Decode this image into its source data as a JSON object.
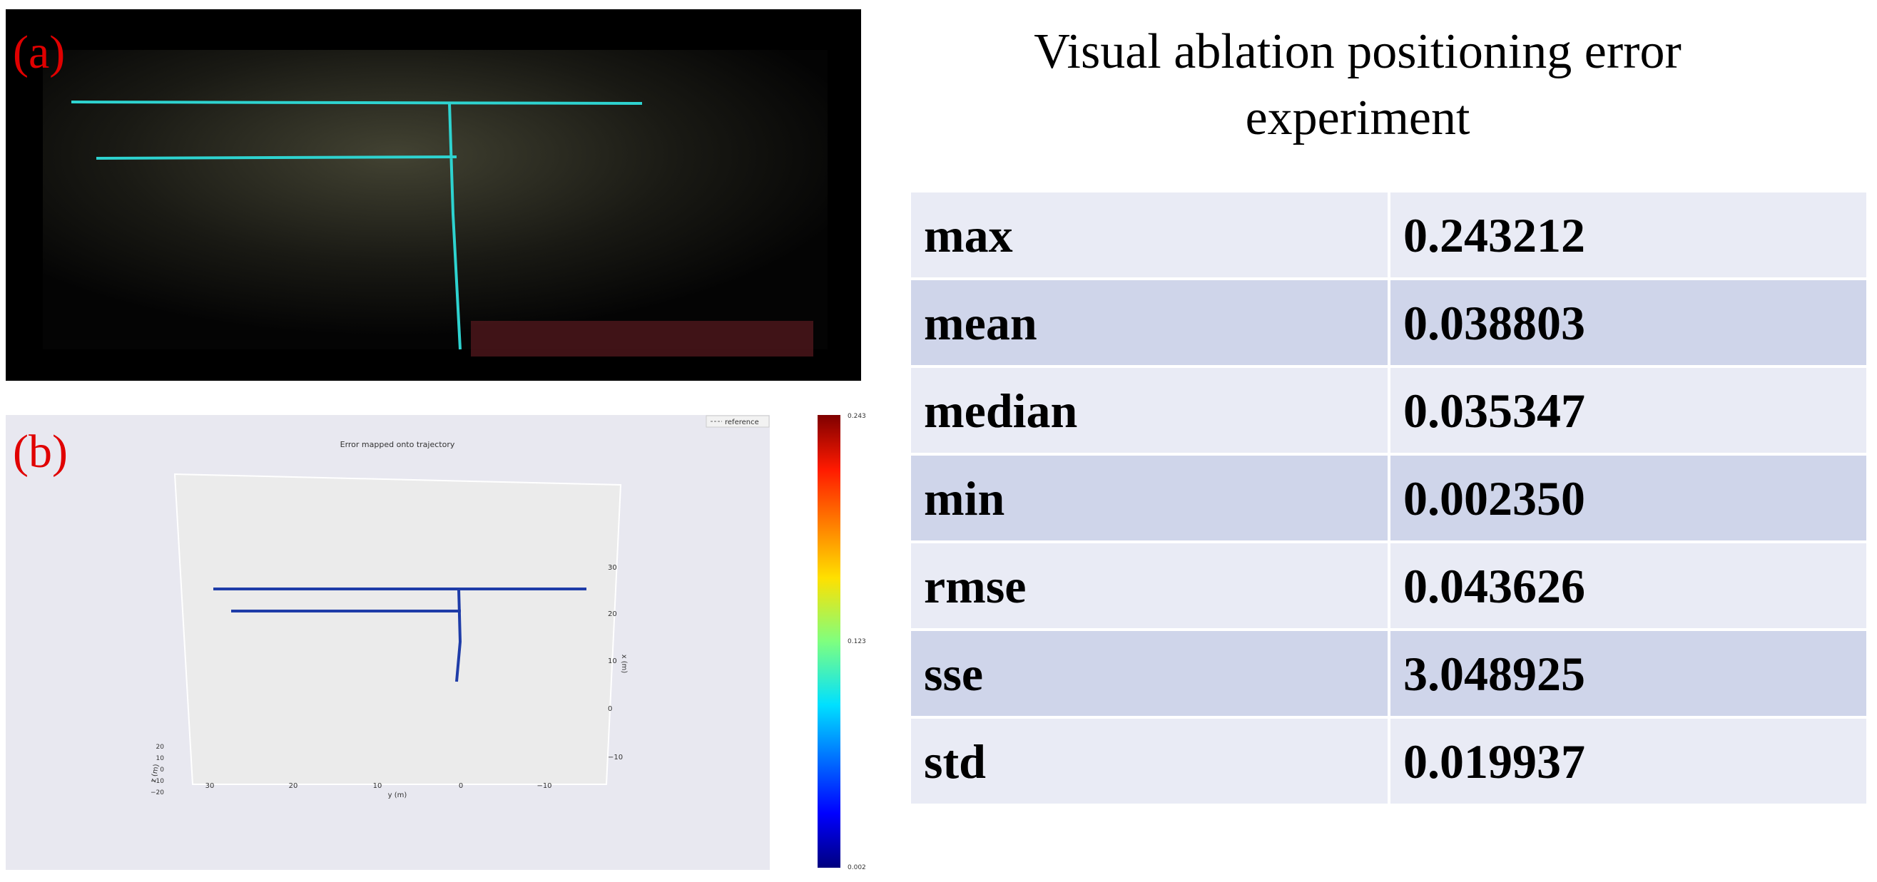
{
  "panel_a": {
    "label": "(a)"
  },
  "panel_b": {
    "label": "(b)",
    "plot": {
      "title": "Error mapped onto trajectory",
      "legend": "reference",
      "xlabel": "y (m)",
      "ylabel": "x (m)",
      "zlabel": "z (m)",
      "xticks": [
        "30",
        "20",
        "10",
        "0",
        "−10"
      ],
      "yticks": [
        "30",
        "20",
        "10",
        "0",
        "−10"
      ],
      "zticks": [
        "20",
        "10",
        "0",
        "−10",
        "−20"
      ],
      "colorbar_ticks": [
        "0.243",
        "0.123",
        "0.002"
      ]
    }
  },
  "table": {
    "title": "Visual ablation positioning error experiment",
    "rows": [
      [
        "max",
        "0.243212"
      ],
      [
        "mean",
        "0.038803"
      ],
      [
        "median",
        "0.035347"
      ],
      [
        "min",
        "0.002350"
      ],
      [
        "rmse",
        "0.043626"
      ],
      [
        "sse",
        "3.048925"
      ],
      [
        "std",
        "0.019937"
      ]
    ]
  }
}
